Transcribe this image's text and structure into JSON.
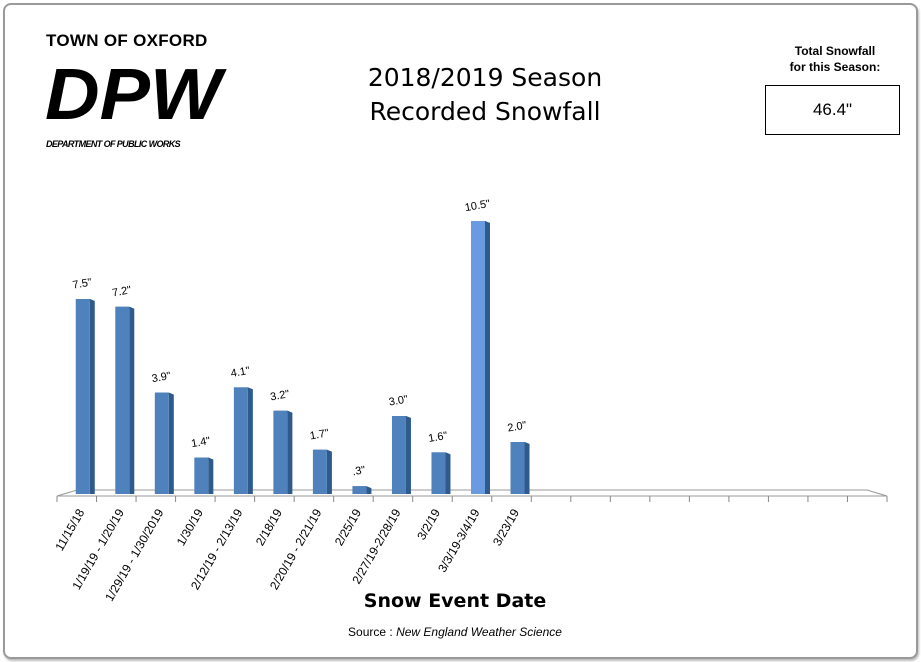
{
  "header": {
    "town": "TOWN OF OXFORD",
    "logo": "DPW",
    "department": "DEPARTMENT OF PUBLIC WORKS"
  },
  "total": {
    "label_line1": "Total Snowfall",
    "label_line2": "for this Season:",
    "value": "46.4\""
  },
  "source": {
    "prefix": "Source : ",
    "name": "New England Weather Science"
  },
  "chart_data": {
    "type": "bar",
    "title_line1": "2018/2019 Season",
    "title_line2": "Recorded Snowfall",
    "xlabel": "Snow Event Date",
    "ylabel": "",
    "categories": [
      "11/15/18",
      "1/19/19 - 1/20/19",
      "1/29/19 - 1/30/2019",
      "1/30/19",
      "2/12/19 - 2/13/19",
      "2/18/19",
      "2/20/19 - 2/21/19",
      "2/25/19",
      "2/27/19-2/28/19",
      "3/2/19",
      "3/3/19-3/4/19",
      "3/23/19"
    ],
    "values": [
      7.5,
      7.2,
      3.9,
      1.4,
      4.1,
      3.2,
      1.7,
      0.3,
      3.0,
      1.6,
      10.5,
      2.0
    ],
    "data_labels": [
      "7.5\"",
      "7.2\"",
      "3.9\"",
      "1.4\"",
      "4.1\"",
      "3.2\"",
      "1.7\"",
      ".3\"",
      "3.0\"",
      "1.6\"",
      "10.5\"",
      "2.0\""
    ],
    "ylim": [
      0,
      10.5
    ],
    "grid": false,
    "bar_color": "#4F81BD",
    "highlight_color": "#6A9BE0"
  }
}
